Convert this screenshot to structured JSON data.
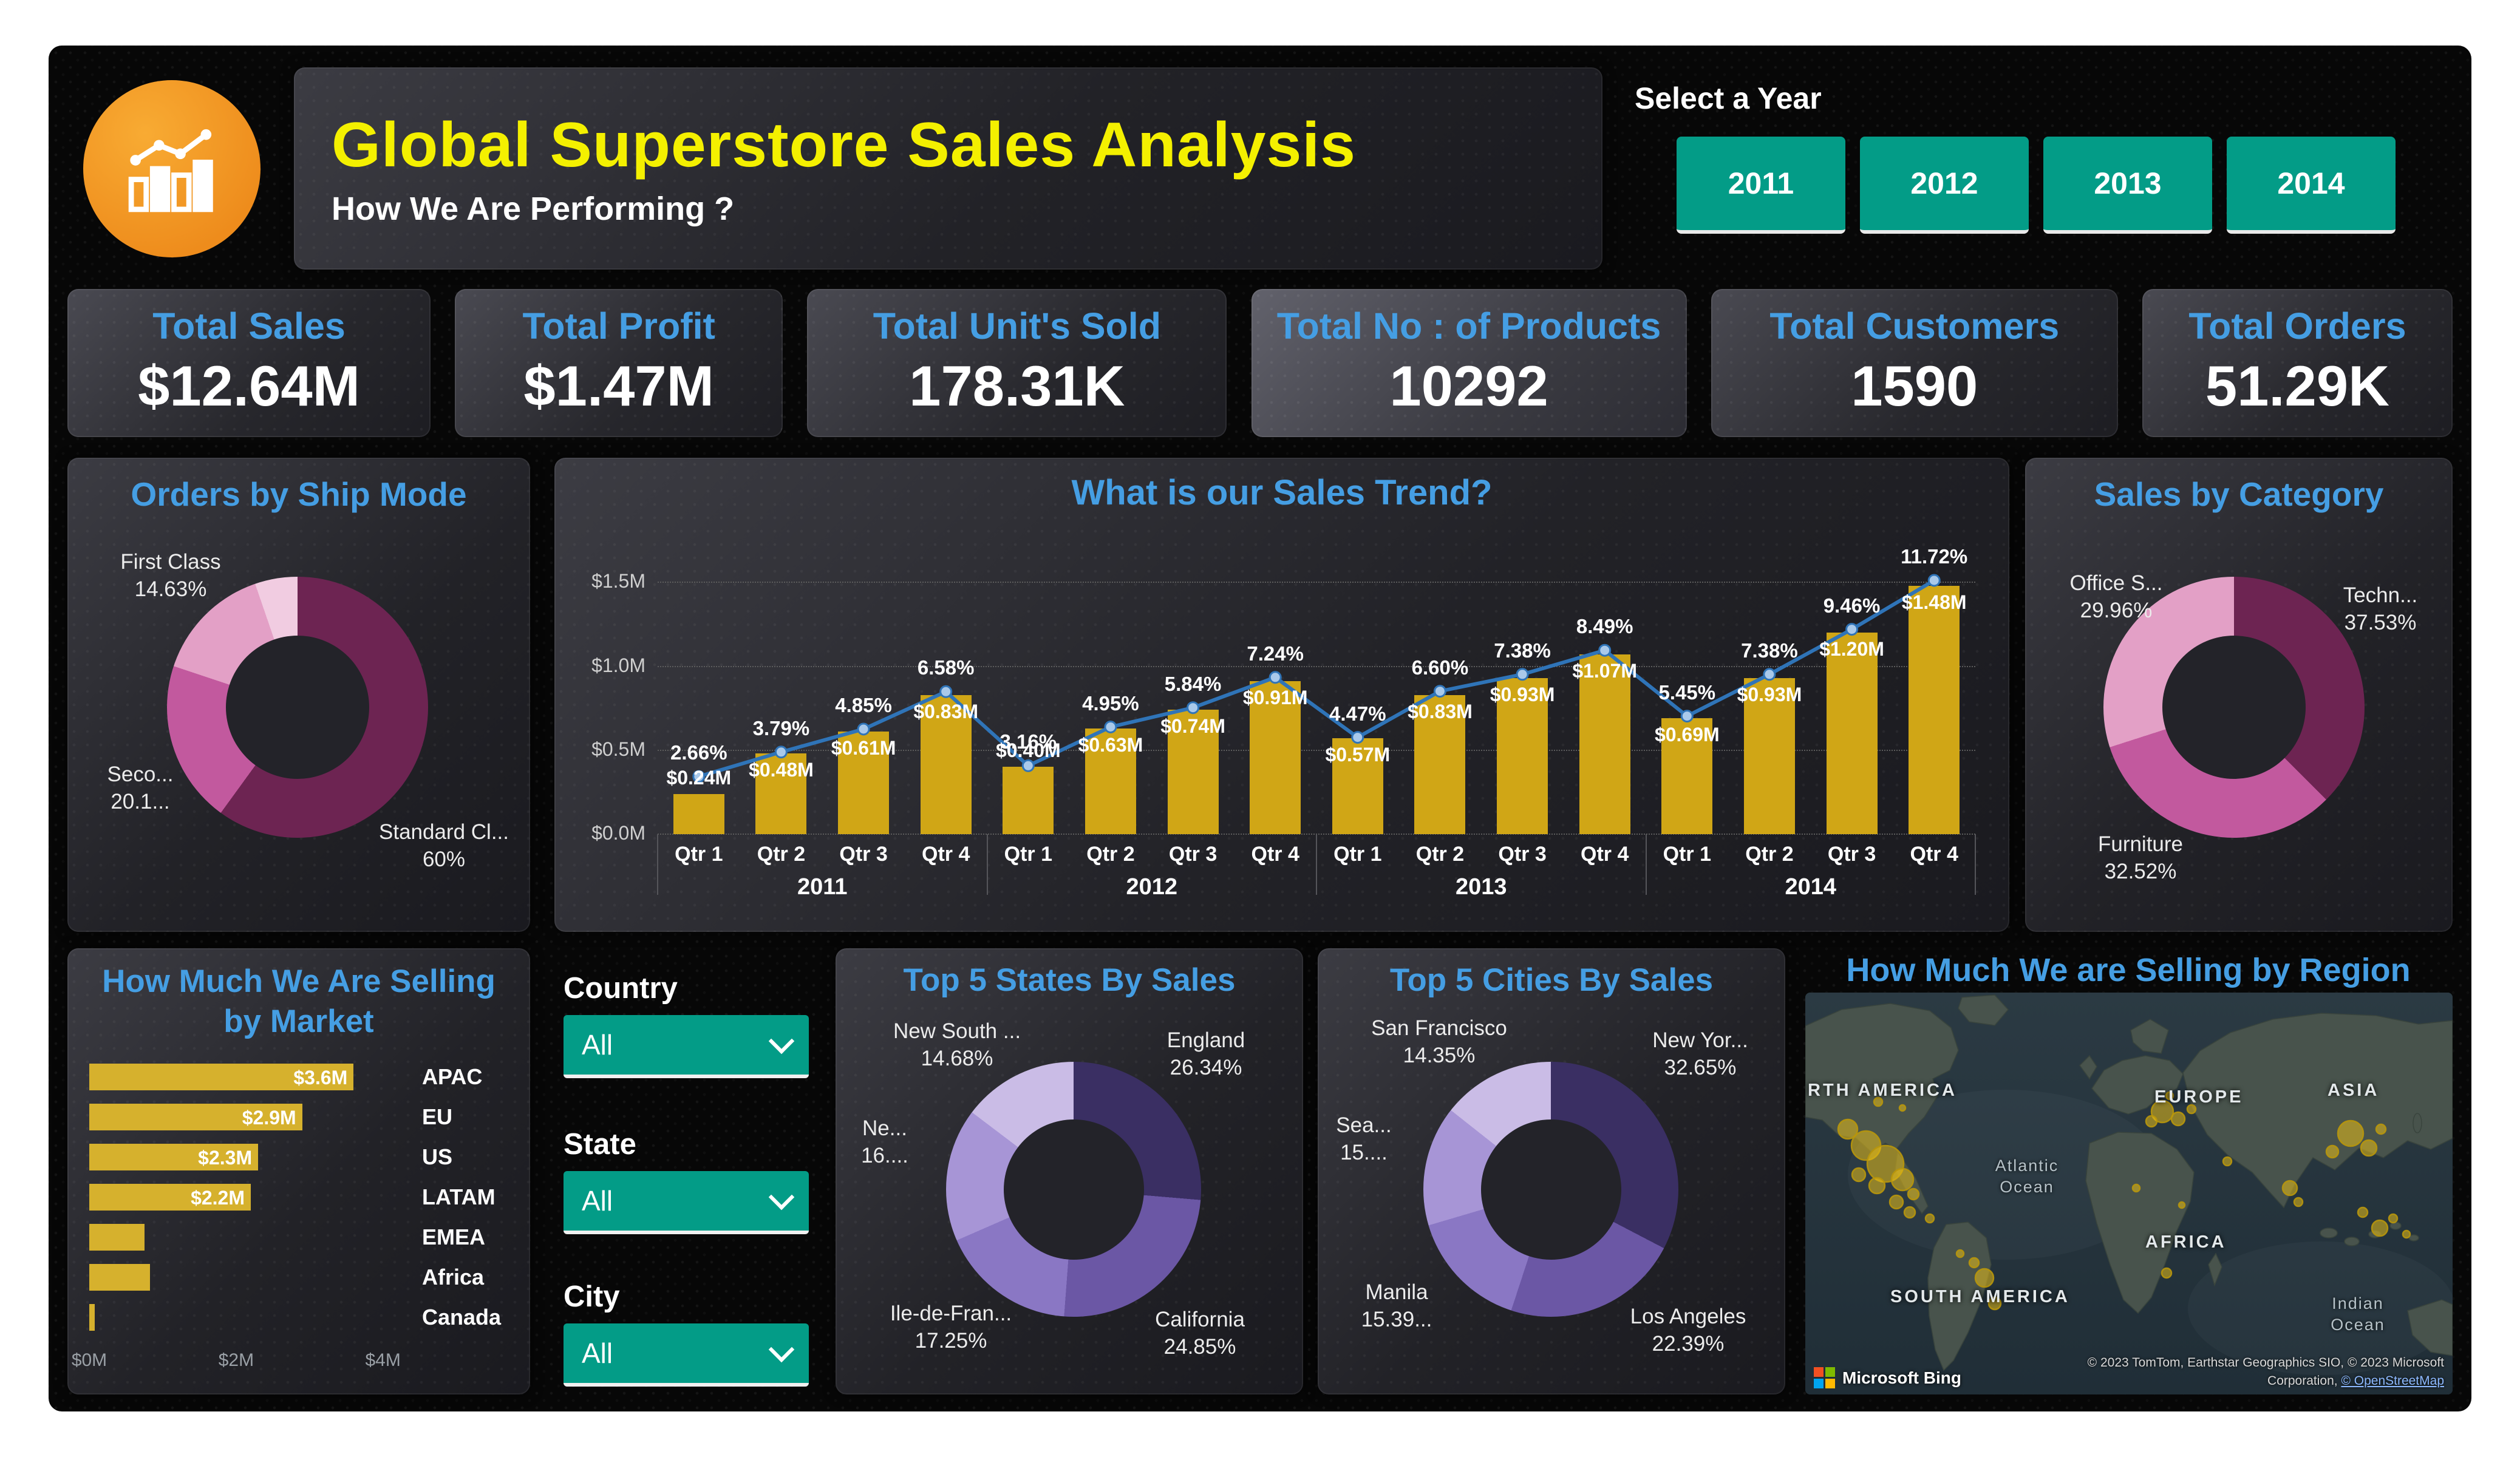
{
  "header": {
    "title": "Global Superstore Sales Analysis",
    "subtitle": "How We Are Performing ?",
    "year_label": "Select a Year",
    "years": [
      "2011",
      "2012",
      "2013",
      "2014"
    ]
  },
  "kpis": [
    {
      "label": "Total Sales",
      "value": "$12.64M"
    },
    {
      "label": "Total Profit",
      "value": "$1.47M"
    },
    {
      "label": "Total Unit's Sold",
      "value": "178.31K"
    },
    {
      "label": "Total No : of Products",
      "value": "10292"
    },
    {
      "label": "Total Customers",
      "value": "1590"
    },
    {
      "label": "Total Orders",
      "value": "51.29K"
    }
  ],
  "slicers": [
    {
      "label": "Country",
      "value": "All"
    },
    {
      "label": "State",
      "value": "All"
    },
    {
      "label": "City",
      "value": "All"
    }
  ],
  "colors": {
    "accent_blue": "#459ee3",
    "teal": "#039c87",
    "gold": "#d0a616",
    "title_yellow": "#f4f000",
    "line_blue": "#2f74b8"
  },
  "chart_data": [
    {
      "type": "pie",
      "title": "Orders by Ship Mode",
      "segments": [
        {
          "label": "Standard Cl...",
          "pct": "60%",
          "value": 60,
          "color": "#6d2452"
        },
        {
          "label": "Seco...",
          "pct": "20.1...",
          "value": 20.1,
          "color": "#c2599e"
        },
        {
          "label": "First Class",
          "pct": "14.63%",
          "value": 14.63,
          "color": "#e3a0c6"
        },
        {
          "label": "",
          "pct": "",
          "value": 5.27,
          "color": "#f1cce1"
        }
      ]
    },
    {
      "type": "combo",
      "title": "What is our Sales Trend?",
      "x_quarters": [
        "Qtr 1",
        "Qtr 2",
        "Qtr 3",
        "Qtr 4"
      ],
      "year_groups": [
        "2011",
        "2012",
        "2013",
        "2014"
      ],
      "bar_values_m": [
        0.24,
        0.48,
        0.61,
        0.83,
        0.4,
        0.63,
        0.74,
        0.91,
        0.57,
        0.83,
        0.93,
        1.07,
        0.69,
        0.93,
        1.2,
        1.48
      ],
      "bar_labels": [
        "$0.24M",
        "$0.48M",
        "$0.61M",
        "$0.83M",
        "$0.40M",
        "$0.63M",
        "$0.74M",
        "$0.91M",
        "$0.57M",
        "$0.83M",
        "$0.93M",
        "$1.07M",
        "$0.69M",
        "$0.93M",
        "$1.20M",
        "$1.48M"
      ],
      "line_pct": [
        2.66,
        3.79,
        4.85,
        6.58,
        3.16,
        4.95,
        5.84,
        7.24,
        4.47,
        6.6,
        7.38,
        8.49,
        5.45,
        7.38,
        9.46,
        11.72
      ],
      "line_labels": [
        "2.66%",
        "3.79%",
        "4.85%",
        "6.58%",
        "3.16%",
        "4.95%",
        "5.84%",
        "7.24%",
        "4.47%",
        "6.60%",
        "7.38%",
        "8.49%",
        "5.45%",
        "7.38%",
        "9.46%",
        "11.72%"
      ],
      "y_ticks": [
        "$0.0M",
        "$0.5M",
        "$1.0M",
        "$1.5M"
      ],
      "ylim_m": [
        0,
        1.7
      ]
    },
    {
      "type": "pie",
      "title": "Sales by Category",
      "segments": [
        {
          "label": "Techn...",
          "pct": "37.53%",
          "value": 37.53,
          "color": "#6d2452"
        },
        {
          "label": "Furniture",
          "pct": "32.52%",
          "value": 32.52,
          "color": "#c2599e"
        },
        {
          "label": "Office S...",
          "pct": "29.96%",
          "value": 29.96,
          "color": "#e3a0c6"
        }
      ]
    },
    {
      "type": "bar",
      "title": "How Much We Are Selling by Market",
      "title_lines": [
        "How Much We Are Selling",
        "by Market"
      ],
      "categories": [
        "APAC",
        "EU",
        "US",
        "LATAM",
        "EMEA",
        "Africa",
        "Canada"
      ],
      "values": [
        3.6,
        2.9,
        2.3,
        2.2,
        0.75,
        0.83,
        0.07
      ],
      "value_labels": [
        "$3.6M",
        "$2.9M",
        "$2.3M",
        "$2.2M",
        "",
        "",
        ""
      ],
      "x_ticks": [
        "$0M",
        "$2M",
        "$4M"
      ],
      "xlim": [
        0,
        4.3
      ]
    },
    {
      "type": "pie",
      "title": "Top 5 States By Sales",
      "segments": [
        {
          "label": "England",
          "pct": "26.34%",
          "value": 26.34,
          "color": "#3a2f63"
        },
        {
          "label": "California",
          "pct": "24.85%",
          "value": 24.85,
          "color": "#6b57a5"
        },
        {
          "label": "Ile-de-Fran...",
          "pct": "17.25%",
          "value": 17.25,
          "color": "#8a77c4"
        },
        {
          "label": "Ne...",
          "pct": "16....",
          "value": 16.88,
          "color": "#a795d6"
        },
        {
          "label": "New South ...",
          "pct": "14.68%",
          "value": 14.68,
          "color": "#cabce6"
        }
      ]
    },
    {
      "type": "pie",
      "title": "Top 5 Cities By Sales",
      "segments": [
        {
          "label": "New Yor...",
          "pct": "32.65%",
          "value": 32.65,
          "color": "#3a2f63"
        },
        {
          "label": "Los Angeles",
          "pct": "22.39%",
          "value": 22.39,
          "color": "#6b57a5"
        },
        {
          "label": "Manila",
          "pct": "15.39...",
          "value": 15.39,
          "color": "#8a77c4"
        },
        {
          "label": "Sea...",
          "pct": "15....",
          "value": 15.22,
          "color": "#a795d6"
        },
        {
          "label": "San Francisco",
          "pct": "14.35%",
          "value": 14.35,
          "color": "#cabce6"
        }
      ]
    },
    {
      "type": "map",
      "title": "How Much We are Selling by Region",
      "region_labels": [
        "RTH AMERICA",
        "EUROPE",
        "ASIA",
        "AFRICA",
        "SOUTH AMERICA"
      ],
      "ocean_labels": {
        "atlantic": [
          "Atlantic",
          "Ocean"
        ],
        "indian": [
          "Indian",
          "Ocean"
        ]
      },
      "bing_label": "Microsoft Bing",
      "attribution": [
        "© 2023 TomTom, Earthstar Geographics SIO, © 2023 Microsoft",
        "Corporation, "
      ],
      "osm_link": "© OpenStreetMap"
    }
  ]
}
